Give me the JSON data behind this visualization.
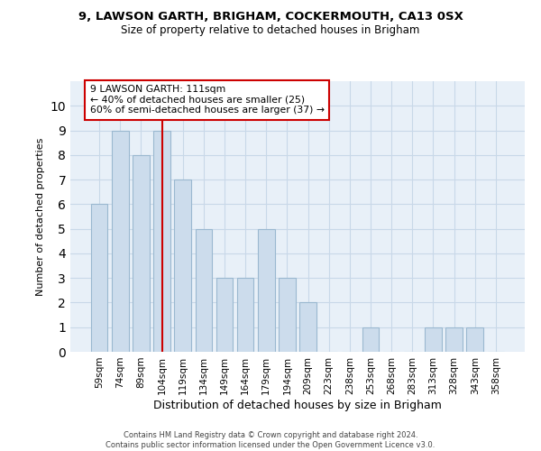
{
  "title1": "9, LAWSON GARTH, BRIGHAM, COCKERMOUTH, CA13 0SX",
  "title2": "Size of property relative to detached houses in Brigham",
  "xlabel": "Distribution of detached houses by size in Brigham",
  "ylabel": "Number of detached properties",
  "categories": [
    "59sqm",
    "74sqm",
    "89sqm",
    "104sqm",
    "119sqm",
    "134sqm",
    "149sqm",
    "164sqm",
    "179sqm",
    "194sqm",
    "209sqm",
    "223sqm",
    "238sqm",
    "253sqm",
    "268sqm",
    "283sqm",
    "313sqm",
    "328sqm",
    "343sqm",
    "358sqm"
  ],
  "values": [
    6,
    9,
    8,
    9,
    7,
    5,
    3,
    3,
    5,
    3,
    2,
    0,
    0,
    1,
    0,
    0,
    1,
    1,
    1,
    0
  ],
  "bar_color": "#ccdcec",
  "bar_edge_color": "#9ab8d0",
  "red_line_index": 3,
  "property_label": "9 LAWSON GARTH: 111sqm",
  "annotation_line1": "← 40% of detached houses are smaller (25)",
  "annotation_line2": "60% of semi-detached houses are larger (37) →",
  "annotation_box_color": "#ffffff",
  "annotation_box_edge": "#cc0000",
  "red_line_color": "#cc0000",
  "ylim": [
    0,
    11
  ],
  "yticks": [
    0,
    1,
    2,
    3,
    4,
    5,
    6,
    7,
    8,
    9,
    10
  ],
  "footer1": "Contains HM Land Registry data © Crown copyright and database right 2024.",
  "footer2": "Contains public sector information licensed under the Open Government Licence v3.0.",
  "grid_color": "#c8d8e8",
  "background_color": "#e8f0f8"
}
